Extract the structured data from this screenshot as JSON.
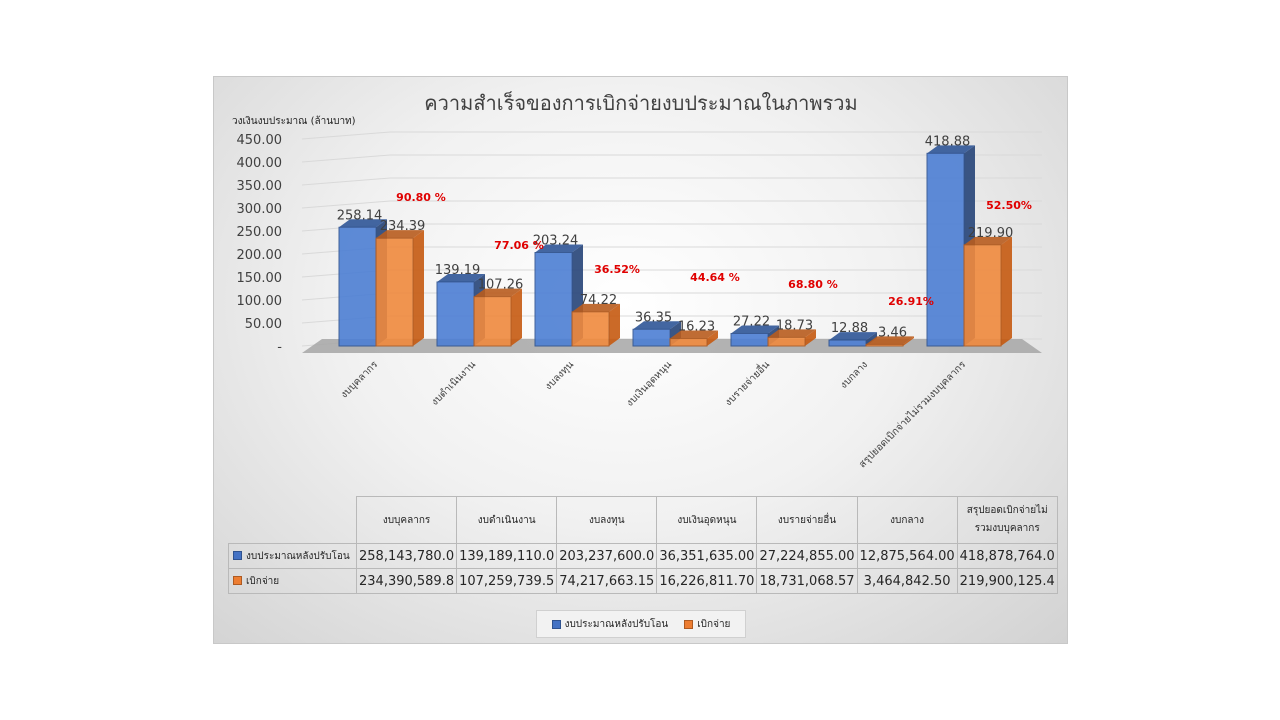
{
  "chart_data": {
    "type": "bar",
    "title": "ความสำเร็จของการเบิกจ่ายงบประมาณในภาพรวม",
    "ylabel": "วงเงินงบประมาณ (ล้านบาท)",
    "ylim": [
      0,
      450
    ],
    "yticks": [
      "-",
      "50.00",
      "100.00",
      "150.00",
      "200.00",
      "250.00",
      "300.00",
      "350.00",
      "400.00",
      "450.00"
    ],
    "categories": [
      "งบบุคลากร",
      "งบดำเนินงาน",
      "งบลงทุน",
      "งบเงินอุดหนุน",
      "งบรายจ่ายอื่น",
      "งบกลาง",
      "สรุปยอดเบิกจ่ายไม่รวมงบบุคลากร"
    ],
    "series": [
      {
        "name": "งบประมาณหลังปรับโอน",
        "color": "#4472c4",
        "values": [
          258.14,
          139.19,
          203.24,
          36.35,
          27.22,
          12.88,
          418.88
        ],
        "labels": [
          "258.14",
          "139.19",
          "203.24",
          "36.35",
          "27.22",
          "12.88",
          "418.88"
        ]
      },
      {
        "name": "เบิกจ่าย",
        "color": "#ed7d31",
        "values": [
          234.39,
          107.26,
          74.22,
          16.23,
          18.73,
          3.46,
          219.9
        ],
        "labels": [
          "234.39",
          "107.26",
          "74.22",
          "16.23",
          "18.73",
          "3.46",
          "219.90"
        ]
      }
    ],
    "percent_labels": [
      "90.80 %",
      "77.06 %",
      "36.52%",
      "44.64 %",
      "68.80 %",
      "26.91%",
      "52.50%"
    ],
    "legend_position": "bottom",
    "grid": true
  },
  "table": {
    "headers": [
      "งบบุคลากร",
      "งบดำเนินงาน",
      "งบลงทุน",
      "งบเงินอุดหนุน",
      "งบรายจ่ายอื่น",
      "งบกลาง",
      "สรุปยอดเบิกจ่ายไม่รวมงบบุคลากร"
    ],
    "rows": [
      {
        "name": "งบประมาณหลังปรับโอน",
        "values": [
          "258,143,780.0",
          "139,189,110.0",
          "203,237,600.0",
          "36,351,635.00",
          "27,224,855.00",
          "12,875,564.00",
          "418,878,764.0"
        ]
      },
      {
        "name": "เบิกจ่าย",
        "values": [
          "234,390,589.8",
          "107,259,739.5",
          "74,217,663.15",
          "16,226,811.70",
          "18,731,068.57",
          "3,464,842.50",
          "219,900,125.4"
        ]
      }
    ]
  },
  "legend": [
    "งบประมาณหลังปรับโอน",
    "เบิกจ่าย"
  ]
}
